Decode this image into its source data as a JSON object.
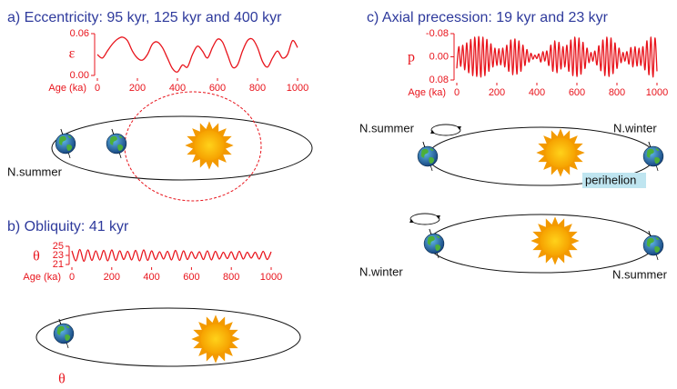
{
  "chart_data": [
    {
      "type": "line",
      "title": "a) Eccentricity: 95 kyr, 125 kyr and 400 kyr",
      "ylabel": "ε",
      "xlabel": "Age (ka)",
      "color": "#e8141c",
      "x": [
        0,
        25,
        50,
        75,
        100,
        125,
        150,
        175,
        200,
        225,
        250,
        275,
        300,
        325,
        350,
        375,
        400,
        425,
        450,
        475,
        500,
        525,
        550,
        575,
        600,
        625,
        650,
        675,
        700,
        725,
        750,
        775,
        800,
        825,
        850,
        875,
        900,
        925,
        950,
        975,
        1000
      ],
      "values": [
        0.03,
        0.025,
        0.035,
        0.045,
        0.052,
        0.055,
        0.05,
        0.035,
        0.025,
        0.022,
        0.03,
        0.045,
        0.048,
        0.04,
        0.025,
        0.01,
        0.005,
        0.015,
        0.012,
        0.03,
        0.042,
        0.035,
        0.025,
        0.04,
        0.052,
        0.048,
        0.03,
        0.012,
        0.015,
        0.035,
        0.05,
        0.052,
        0.04,
        0.02,
        0.012,
        0.025,
        0.035,
        0.025,
        0.03,
        0.05,
        0.04
      ],
      "xlim": [
        0,
        1000
      ],
      "ylim": [
        0,
        0.06
      ],
      "xticks": [
        0,
        200,
        400,
        600,
        800,
        1000
      ],
      "yticks": [
        {
          "value": 0,
          "label": "0.00"
        },
        0.06
      ]
    },
    {
      "type": "line",
      "title": "b) Obliquity: 41 kyr",
      "ylabel": "θ",
      "xlabel": "Age (ka)",
      "color": "#e8141c",
      "x": [
        0,
        20,
        40,
        60,
        80,
        100,
        120,
        140,
        160,
        180,
        200,
        220,
        240,
        260,
        280,
        300,
        320,
        340,
        360,
        380,
        400,
        420,
        440,
        460,
        480,
        500,
        520,
        540,
        560,
        580,
        600,
        620,
        640,
        660,
        680,
        700,
        720,
        740,
        760,
        780,
        800,
        820,
        840,
        860,
        880,
        900,
        920,
        940,
        960,
        980,
        1000
      ],
      "values": [
        24.0,
        21.8,
        24.3,
        21.7,
        24.2,
        21.9,
        24.0,
        22.0,
        24.1,
        21.8,
        24.2,
        21.9,
        24.0,
        22.1,
        23.9,
        22.0,
        24.1,
        21.8,
        24.2,
        21.9,
        24.0,
        22.1,
        23.8,
        22.2,
        23.9,
        22.0,
        24.1,
        21.9,
        24.0,
        22.1,
        23.8,
        22.3,
        23.8,
        22.1,
        24.0,
        22.0,
        23.9,
        22.2,
        23.7,
        22.3,
        23.8,
        22.1,
        23.9,
        22.2,
        23.7,
        22.4,
        23.7,
        22.2,
        23.9,
        22.1,
        23.8
      ],
      "xlim": [
        0,
        1000
      ],
      "ylim": [
        21,
        25
      ],
      "xticks": [
        0,
        200,
        400,
        600,
        800,
        1000
      ],
      "yticks": [
        21,
        23,
        25
      ]
    },
    {
      "type": "line",
      "title": "c) Axial precession: 19 kyr and 23 kyr",
      "ylabel": "p",
      "xlabel": "Age (ka)",
      "color": "#e8141c",
      "x": [
        0,
        10,
        20,
        30,
        40,
        50,
        60,
        70,
        80,
        90,
        100,
        110,
        120,
        130,
        140,
        150,
        160,
        170,
        180,
        190,
        200,
        210,
        220,
        230,
        240,
        250,
        260,
        270,
        280,
        290,
        300,
        310,
        320,
        330,
        340,
        350,
        360,
        370,
        380,
        390,
        400,
        410,
        420,
        430,
        440,
        450,
        460,
        470,
        480,
        490,
        500,
        510,
        520,
        530,
        540,
        550,
        560,
        570,
        580,
        590,
        600,
        610,
        620,
        630,
        640,
        650,
        660,
        670,
        680,
        690,
        700,
        710,
        720,
        730,
        740,
        750,
        760,
        770,
        780,
        790,
        800,
        810,
        820,
        830,
        840,
        850,
        860,
        870,
        880,
        890,
        900,
        910,
        920,
        930,
        940,
        950,
        960,
        970,
        980,
        990,
        1000
      ],
      "values": [
        0.04,
        -0.035,
        0.033,
        -0.04,
        0.045,
        -0.048,
        0.055,
        -0.06,
        0.065,
        -0.068,
        0.068,
        -0.07,
        0.07,
        -0.068,
        0.065,
        -0.06,
        0.05,
        -0.045,
        0.035,
        -0.03,
        0.03,
        -0.028,
        0.028,
        -0.03,
        0.035,
        -0.04,
        0.05,
        -0.058,
        0.062,
        -0.062,
        0.06,
        -0.055,
        0.05,
        -0.04,
        0.03,
        -0.025,
        0.018,
        -0.012,
        0.008,
        -0.006,
        0.006,
        -0.01,
        0.018,
        -0.018,
        0.015,
        -0.02,
        0.03,
        -0.04,
        0.05,
        -0.055,
        0.055,
        -0.05,
        0.042,
        -0.035,
        0.035,
        -0.04,
        0.05,
        -0.058,
        0.065,
        -0.068,
        0.068,
        -0.065,
        0.06,
        -0.05,
        0.04,
        -0.03,
        0.02,
        -0.015,
        0.015,
        -0.02,
        0.028,
        -0.038,
        0.048,
        -0.058,
        0.065,
        -0.068,
        0.068,
        -0.065,
        0.058,
        -0.048,
        0.04,
        -0.03,
        0.02,
        -0.015,
        0.015,
        -0.018,
        0.025,
        -0.032,
        0.035,
        -0.035,
        0.032,
        -0.03,
        0.03,
        -0.035,
        0.045,
        -0.055,
        0.062,
        -0.068,
        0.07,
        -0.065,
        0.05
      ],
      "xlim": [
        0,
        1000
      ],
      "ylim": [
        0.08,
        -0.08
      ],
      "xticks": [
        0,
        200,
        400,
        600,
        800,
        1000
      ],
      "yticks": [
        -0.08,
        {
          "value": 0,
          "label": "0.00"
        },
        0.08
      ]
    }
  ],
  "diagrams": [
    {
      "labels": [
        "N.summer"
      ]
    },
    {
      "labels": [
        "θ"
      ]
    },
    {
      "labels": [
        "N.summer",
        "N.winter",
        "perihelion"
      ]
    },
    {
      "labels": [
        "N.winter",
        "N.summer"
      ]
    }
  ]
}
